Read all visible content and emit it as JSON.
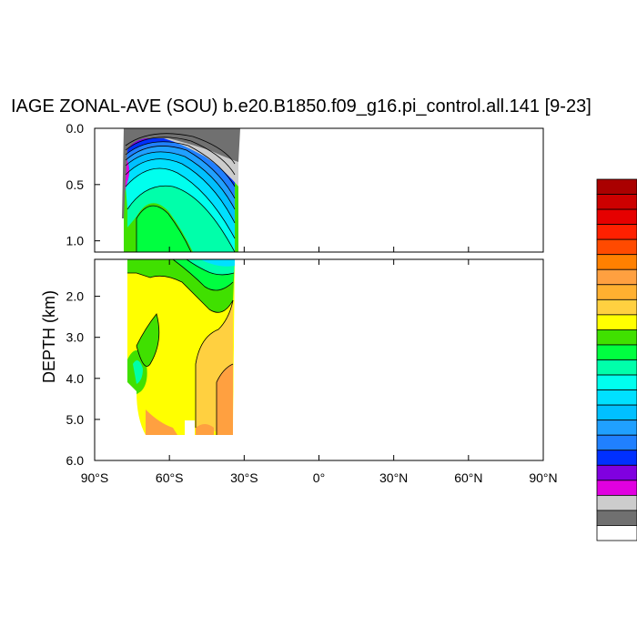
{
  "chart_data": {
    "type": "contour",
    "title": "IAGE ZONAL-AVE (SOU) b.e20.B1850.f09_g16.pi_control.all.141 [9-23]",
    "xlabel": "",
    "ylabel": "DEPTH (km)",
    "x_ticks": [
      "90°S",
      "60°S",
      "30°S",
      "0°",
      "30°N",
      "60°N",
      "90°N"
    ],
    "x_tick_values": [
      -90,
      -60,
      -30,
      0,
      30,
      60,
      90
    ],
    "xlim": [
      -90,
      90
    ],
    "upper_panel": {
      "ylim": [
        0.0,
        1.1
      ],
      "y_ticks": [
        "0.0",
        "0.5",
        "1.0"
      ],
      "y_tick_values": [
        0.0,
        0.5,
        1.0
      ]
    },
    "lower_panel": {
      "ylim": [
        1.1,
        6.0
      ],
      "y_ticks": [
        "2.0",
        "3.0",
        "4.0",
        "5.0",
        "6.0"
      ],
      "y_tick_values": [
        2.0,
        3.0,
        4.0,
        5.0,
        6.0
      ]
    },
    "data_extent": {
      "lat_range": [
        -78,
        -33
      ],
      "depth_range_km": [
        0.0,
        5.4
      ]
    },
    "colorbar": {
      "colors": [
        "#aa0000",
        "#cc0000",
        "#e60000",
        "#ff2000",
        "#ff4a00",
        "#ff8000",
        "#ffa040",
        "#ffb030",
        "#ffd040",
        "#ffff00",
        "#40e000",
        "#00ff40",
        "#00ffaa",
        "#00ffee",
        "#00e0ff",
        "#00c0ff",
        "#20a0ff",
        "#2080ff",
        "#0030ff",
        "#8000e0",
        "#e000e0",
        "#cccccc",
        "#707070",
        "#ffffff"
      ]
    }
  }
}
